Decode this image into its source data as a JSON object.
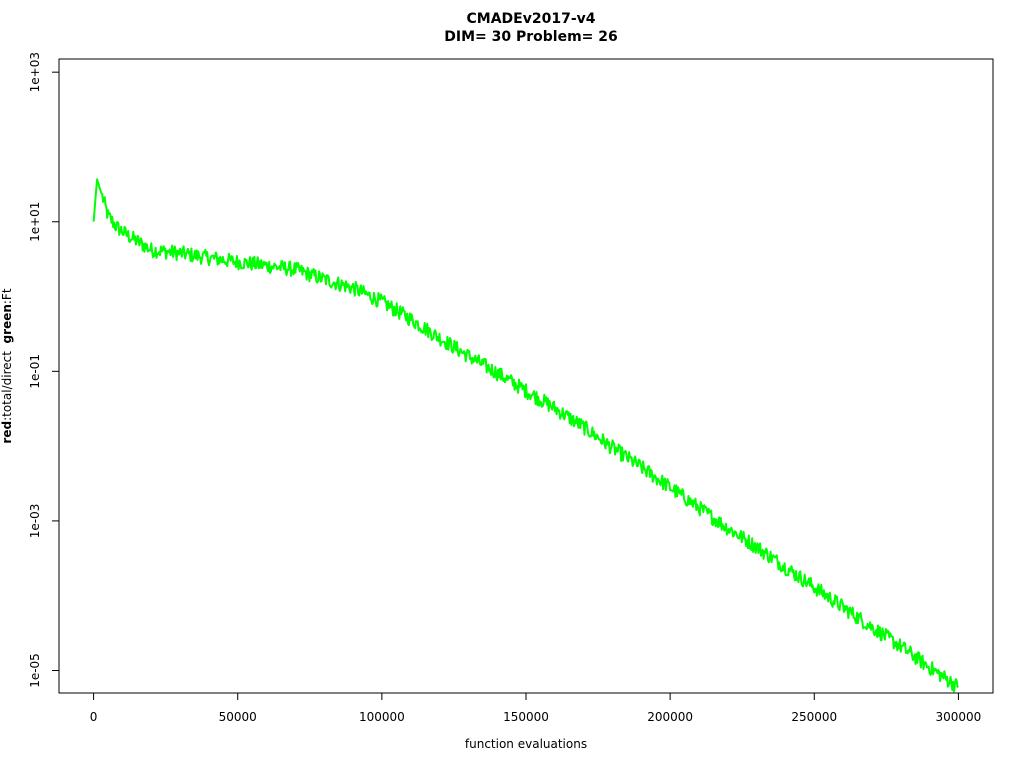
{
  "chart_data": {
    "type": "line",
    "title": "CMADEv2017-v4",
    "subtitle": "DIM= 30   Problem= 26",
    "xlabel": "function evaluations",
    "ylabel_parts": [
      {
        "text": "red",
        "bold": true
      },
      {
        "text": ":total/direct  ",
        "bold": false
      },
      {
        "text": "green",
        "bold": true
      },
      {
        "text": ":Ft",
        "bold": false
      }
    ],
    "y_scale": "log10",
    "xlim": [
      -12000,
      312000
    ],
    "ylim": [
      5e-06,
      1500
    ],
    "x_ticks": [
      0,
      50000,
      100000,
      150000,
      200000,
      250000,
      300000
    ],
    "x_tick_labels": [
      "0",
      "50000",
      "100000",
      "150000",
      "200000",
      "250000",
      "300000"
    ],
    "y_ticks": [
      1000,
      10,
      0.1,
      0.001,
      1e-05
    ],
    "y_tick_labels": [
      "1e+03",
      "1e+01",
      "1e-01",
      "1e-03",
      "1e-05"
    ],
    "grid": false,
    "legend": "none",
    "series": [
      {
        "color": "#00ff00",
        "x": [
          0,
          1200,
          3000,
          5000,
          8000,
          12000,
          20000,
          30000,
          40000,
          50000,
          60000,
          70000,
          80000,
          90000,
          100000,
          110000,
          120000,
          130000,
          140000,
          150000,
          160000,
          170000,
          180000,
          190000,
          200000,
          210000,
          220000,
          230000,
          240000,
          250000,
          260000,
          270000,
          280000,
          290000,
          300000
        ],
        "y": [
          10,
          37,
          22,
          12,
          8.5,
          6.5,
          4.2,
          3.8,
          3.3,
          2.9,
          2.6,
          2.3,
          1.7,
          1.3,
          0.85,
          0.5,
          0.28,
          0.16,
          0.095,
          0.055,
          0.032,
          0.018,
          0.0095,
          0.0052,
          0.0028,
          0.0015,
          0.0008,
          0.00045,
          0.00024,
          0.00013,
          7e-05,
          3.8e-05,
          2.1e-05,
          1.1e-05,
          6e-06
        ]
      }
    ]
  }
}
